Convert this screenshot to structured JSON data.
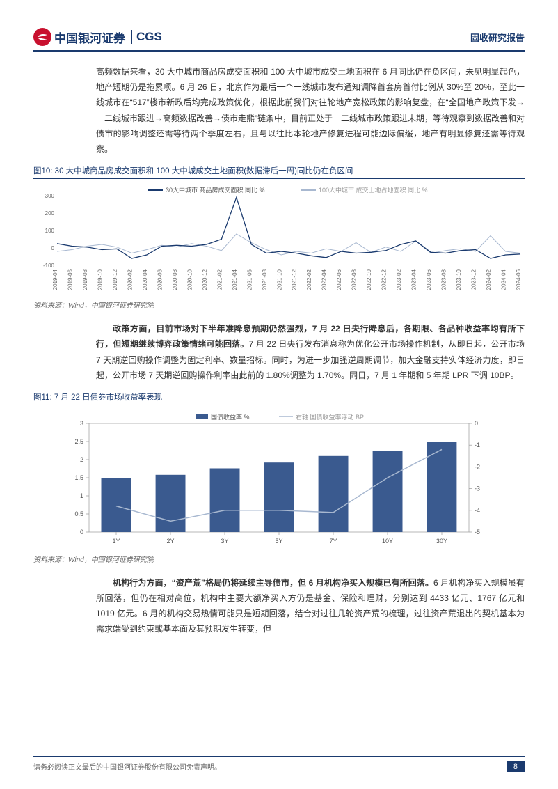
{
  "header": {
    "logo_cn": "中国银河证券",
    "logo_en": "CGS",
    "report_type": "固收研究报告"
  },
  "para1": "高频数据来看，30 大中城市商品房成交面积和 100 大中城市成交土地面积在 6 月同比仍在负区间，未见明显起色，地产短期仍是拖累项。6 月 26 日，北京作为最后一个一线城市发布通知调降首套房首付比例从 30%至 20%，至此一线城市在“517”楼市新政后均完成政策优化，根据此前我们对往轮地产宽松政策的影响复盘，在“全国地产政策下发→一二线城市跟进→高频数据改善→债市走熊”链条中，目前正处于一二线城市政策跟进末期，等待观察到数据改善和对债市的影响调整还需等待两个季度左右，且与以往比本轮地产修复进程可能边际偏缓，地产有明显修复还需等待观察。",
  "chart10": {
    "title": "图10: 30 大中城商品房成交面积和 100 大中城成交土地面积(数据滞后一周)同比仍在负区间",
    "type": "line",
    "legend": [
      "30大中城市:商品房成交面积 同比 %",
      "100大中城市:成交土地占地面积 同比 %"
    ],
    "legend_colors": [
      "#1a3a6e",
      "#a8b8d0"
    ],
    "x_labels": [
      "2019-04",
      "2019-06",
      "2019-08",
      "2019-10",
      "2019-12",
      "2020-02",
      "2020-04",
      "2020-06",
      "2020-08",
      "2020-10",
      "2020-12",
      "2021-02",
      "2021-04",
      "2021-06",
      "2021-08",
      "2021-10",
      "2021-12",
      "2022-02",
      "2022-04",
      "2022-06",
      "2022-08",
      "2022-10",
      "2022-12",
      "2023-02",
      "2023-04",
      "2023-06",
      "2023-08",
      "2023-10",
      "2023-12",
      "2024-02",
      "2024-04",
      "2024-06"
    ],
    "y_ticks": [
      -100,
      0,
      100,
      200,
      300
    ],
    "ylim": [
      -100,
      300
    ],
    "series1": [
      25,
      10,
      5,
      -10,
      -5,
      -60,
      -40,
      10,
      15,
      10,
      20,
      50,
      290,
      20,
      -30,
      -20,
      -30,
      -45,
      -55,
      -20,
      -30,
      -25,
      -15,
      20,
      40,
      -25,
      -30,
      -15,
      -10,
      -60,
      -40,
      -35
    ],
    "series2": [
      -20,
      -10,
      10,
      20,
      5,
      -30,
      -10,
      15,
      5,
      25,
      10,
      -15,
      80,
      30,
      -10,
      -40,
      -20,
      -30,
      -5,
      -20,
      30,
      -25,
      5,
      -20,
      40,
      -30,
      -15,
      -5,
      -20,
      70,
      -20,
      -30
    ],
    "tick_fontsize": 8,
    "background_color": "#ffffff",
    "source": "资料来源：Wind，中国银河证券研究院"
  },
  "para2_bold": "政策方面，目前市场对下半年准降息预期仍然强烈，7 月 22 日央行降息后，各期限、各品种收益率均有所下行，但短期继续博弈政策情绪可能回落。",
  "para2_rest": "7 月 22 日央行发布消息称为优化公开市场操作机制，从即日起，公开市场 7 天期逆回购操作调整为固定利率、数量招标。同时，为进一步加强逆周期调节，加大金融支持实体经济力度，即日起，公开市场 7 天期逆回购操作利率由此前的 1.80%调整为 1.70%。同日，7 月 1 年期和 5 年期 LPR 下调 10BP。",
  "chart11": {
    "title": "图11: 7 月 22 日债券市场收益率表现",
    "type": "bar_line_dual",
    "legend": [
      "国债收益率 %",
      "右轴 国债收益率浮动 BP"
    ],
    "legend_colors": [
      "#3a5a8f",
      "#a8b8d0"
    ],
    "x_labels": [
      "1Y",
      "2Y",
      "3Y",
      "5Y",
      "7Y",
      "10Y",
      "30Y"
    ],
    "y_left_ticks": [
      0,
      0.5,
      1,
      1.5,
      2,
      2.5,
      3
    ],
    "y_right_ticks": [
      -5,
      -4,
      -3,
      -2,
      -1,
      0
    ],
    "ylim_left": [
      0,
      3
    ],
    "ylim_right": [
      -5,
      0
    ],
    "bar_values": [
      1.48,
      1.58,
      1.76,
      1.92,
      2.1,
      2.25,
      2.48
    ],
    "line_values": [
      -3.8,
      -4.5,
      -4.0,
      -4.0,
      -4.1,
      -2.5,
      -1.2
    ],
    "bar_color": "#3a5a8f",
    "line_color": "#a8b8d0",
    "bar_width": 0.55,
    "border_color": "#999",
    "tick_fontsize": 9,
    "source": "资料来源：Wind，中国银河证券研究院"
  },
  "para3_bold": "机构行为方面，“资产荒”格局仍将延续主导债市，但 6 月机构净买入规模已有所回落。",
  "para3_rest": "6 月机构净买入规模虽有所回落，但仍在相对高位，机构中主要大额净买入方仍是基金、保险和理财，分别达到 4433 亿元、1767 亿元和 1019 亿元。6 月的机构交易热情可能只是短期回落，结合对过往几轮资产荒的梳理，过往资产荒退出的契机基本为需求端受到约束或基本面及其预期发生转变，但",
  "footer": {
    "disclaimer": "请务必阅读正文最后的中国银河证券股份有限公司免责声明。",
    "page": "8"
  }
}
